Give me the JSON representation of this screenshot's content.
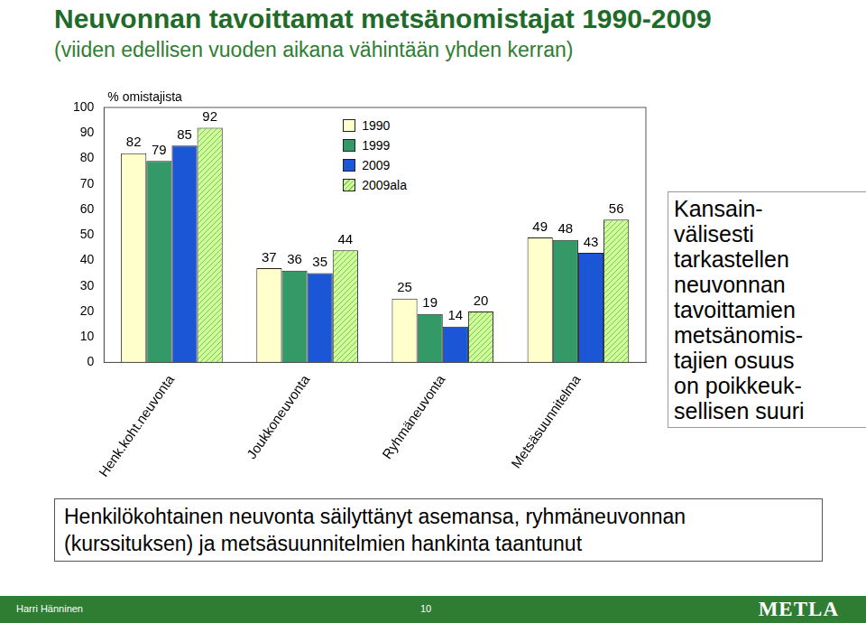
{
  "chart_data": {
    "type": "bar",
    "title": "Neuvonnan tavoittamat metsänomistajat 1990-2009",
    "subtitle": "(viiden edellisen vuoden aikana vähintään yhden kerran)",
    "y_label": "% omistajista",
    "categories": [
      "Henk.koht.neuvonta",
      "Joukkoneuvonta",
      "Ryhmäneuvonta",
      "Metsäsuunnitelma"
    ],
    "series": [
      {
        "name": "1990",
        "color": "#ffffcc",
        "values": [
          82,
          37,
          25,
          49
        ]
      },
      {
        "name": "1999",
        "color": "#339966",
        "values": [
          79,
          36,
          19,
          48
        ]
      },
      {
        "name": "2009",
        "color": "#1a56d6",
        "values": [
          85,
          35,
          14,
          43
        ]
      },
      {
        "name": "2009ala",
        "color": "#ccff99",
        "values": [
          92,
          44,
          20,
          56
        ]
      }
    ],
    "ylim": [
      0,
      100
    ],
    "yticks": [
      0,
      10,
      20,
      30,
      40,
      50,
      60,
      70,
      80,
      90,
      100
    ],
    "grid": false,
    "legend": "upper center",
    "data_labels": true
  },
  "side_note": [
    "Kansain-",
    "välisesti",
    "tarkastellen",
    "neuvonnan",
    "tavoittamien",
    "metsänomis-",
    "tajien osuus",
    "on poikkeuk-",
    "sellisen suuri"
  ],
  "conclusion": [
    "Henkilökohtainen neuvonta säilyttänyt asemansa, ryhmäneuvonnan",
    "(kurssituksen) ja metsäsuunnitelmien hankinta taantunut"
  ],
  "footer": {
    "author": "Harri Hänninen",
    "page": 10,
    "logo": "METLA"
  }
}
